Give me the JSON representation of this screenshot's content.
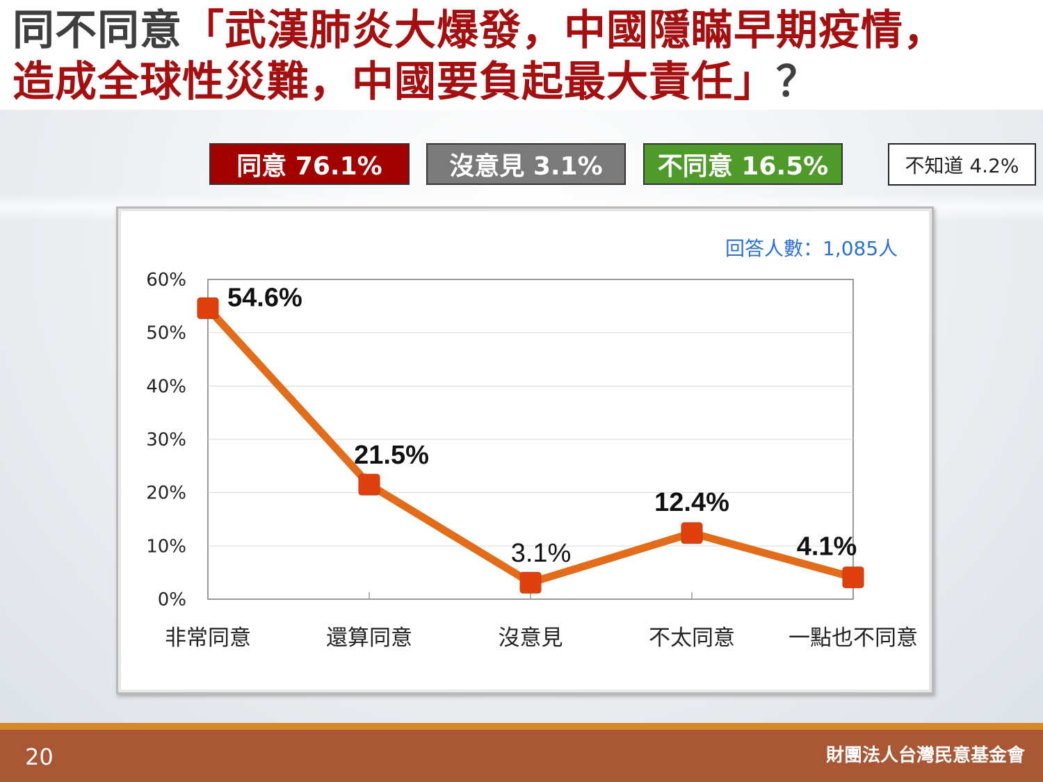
{
  "title": {
    "prefix": "同不同意",
    "line1_red": "「武漢肺炎大爆發，中國隱瞞早期疫情，",
    "line2_red": "造成全球性災難，中國要負起最大責任」",
    "suffix": "？"
  },
  "summary": {
    "agree": "同意 76.1%",
    "neutral": "沒意見 3.1%",
    "disagree": "不同意 16.5%",
    "unknown": "不知道 4.2%"
  },
  "colors": {
    "agree": "#a30000",
    "neutral": "#7a7a7a",
    "disagree": "#4e9b2a",
    "line": "#e36c1a",
    "marker": "#e0400e"
  },
  "respondents": "回答人數：1,085人",
  "chart_data": {
    "type": "line",
    "categories": [
      "非常同意",
      "還算同意",
      "沒意見",
      "不太同意",
      "一點也不同意"
    ],
    "values": [
      54.6,
      21.5,
      3.1,
      12.4,
      4.1
    ],
    "data_labels": [
      "54.6%",
      "21.5%",
      "3.1%",
      "12.4%",
      "4.1%"
    ],
    "y_ticks": [
      "0%",
      "10%",
      "20%",
      "30%",
      "40%",
      "50%",
      "60%"
    ],
    "ylim": [
      0,
      60
    ],
    "grid": true,
    "title": "",
    "xlabel": "",
    "ylabel": ""
  },
  "footer": {
    "page": "20",
    "org": "財團法人台灣民意基金會"
  }
}
